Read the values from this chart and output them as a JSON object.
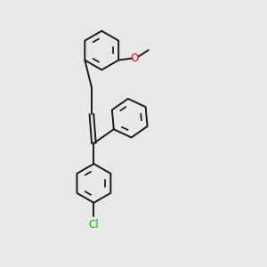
{
  "bg_color": "#e8e8e8",
  "bond_color": "#1a1a1a",
  "bond_width": 1.4,
  "o_color": "#ff0000",
  "cl_color": "#00bb00",
  "text_color": "#000000",
  "font_size": 8.5,
  "ring_r": 0.52,
  "xlim": [
    0,
    6
  ],
  "ylim": [
    0,
    7
  ]
}
